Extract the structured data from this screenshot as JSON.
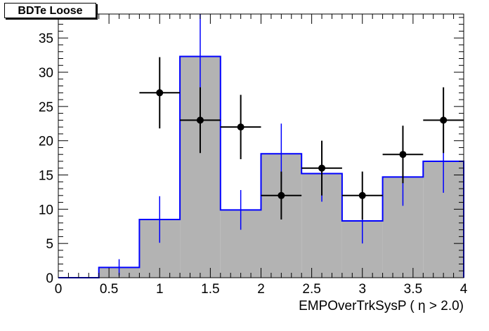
{
  "chart_data": {
    "type": "bar",
    "title": "BDTe Loose",
    "xlabel": "EMPOverTrkSysP ( η > 2.0)",
    "ylabel": "",
    "xlim": [
      0,
      4
    ],
    "ylim": [
      0,
      38.5
    ],
    "grid": false,
    "legend": "none",
    "x_ticks": [
      "0",
      "0.5",
      "1",
      "1.5",
      "2",
      "2.5",
      "3",
      "3.5",
      "4"
    ],
    "y_ticks": [
      "0",
      "5",
      "10",
      "15",
      "20",
      "25",
      "30",
      "35"
    ],
    "bin_edges": [
      0,
      0.4,
      0.8,
      1.2,
      1.6,
      2.0,
      2.4,
      2.8,
      3.2,
      3.6,
      4.0
    ],
    "series": [
      {
        "kind": "histogram",
        "color": "#0000ff",
        "fill": "#b3b3b3",
        "centers": [
          0.2,
          0.6,
          1.0,
          1.4,
          1.8,
          2.2,
          2.6,
          3.0,
          3.4,
          3.8
        ],
        "values": [
          0,
          1.5,
          8.5,
          32.3,
          9.9,
          18.1,
          15.2,
          8.3,
          14.7,
          17.0
        ],
        "errors": [
          0,
          1.2,
          3.4,
          6.8,
          2.9,
          4.4,
          4.1,
          3.3,
          4.2,
          4.6
        ]
      },
      {
        "kind": "points",
        "color": "#000000",
        "x": [
          1.0,
          1.4,
          1.8,
          2.2,
          2.6,
          3.0,
          3.4,
          3.8
        ],
        "values": [
          27,
          23,
          22,
          12,
          16,
          12,
          18,
          23
        ],
        "errors": [
          5.2,
          4.8,
          4.7,
          3.5,
          4.0,
          3.5,
          4.2,
          4.8
        ],
        "xerr": 0.2
      }
    ]
  }
}
